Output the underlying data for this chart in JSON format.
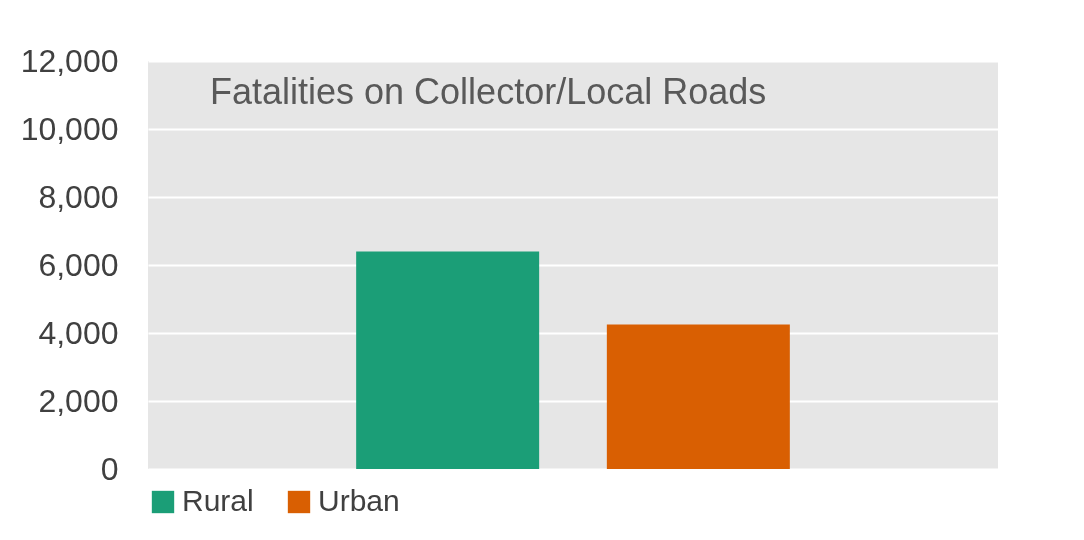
{
  "chart_data": {
    "type": "bar",
    "title": "Fatalities on Collector/Local Roads",
    "categories": [
      null
    ],
    "series": [
      {
        "name": "Rural",
        "color": "#1b9e77",
        "values": [
          6400
        ]
      },
      {
        "name": "Urban",
        "color": "#d95f02",
        "values": [
          4250
        ]
      }
    ],
    "ylim": [
      0,
      12000
    ],
    "yticks": [
      0,
      {
        "value": 2000,
        "label": "2,000"
      },
      {
        "value": 4000,
        "label": "4,000"
      },
      {
        "value": 6000,
        "label": "6,000"
      },
      {
        "value": 8000,
        "label": "8,000"
      },
      {
        "value": 10000,
        "label": "10,000"
      },
      {
        "value": 12000,
        "label": "12,000"
      }
    ],
    "grid": "y",
    "legend": "bottom",
    "tick_labels": "y"
  }
}
